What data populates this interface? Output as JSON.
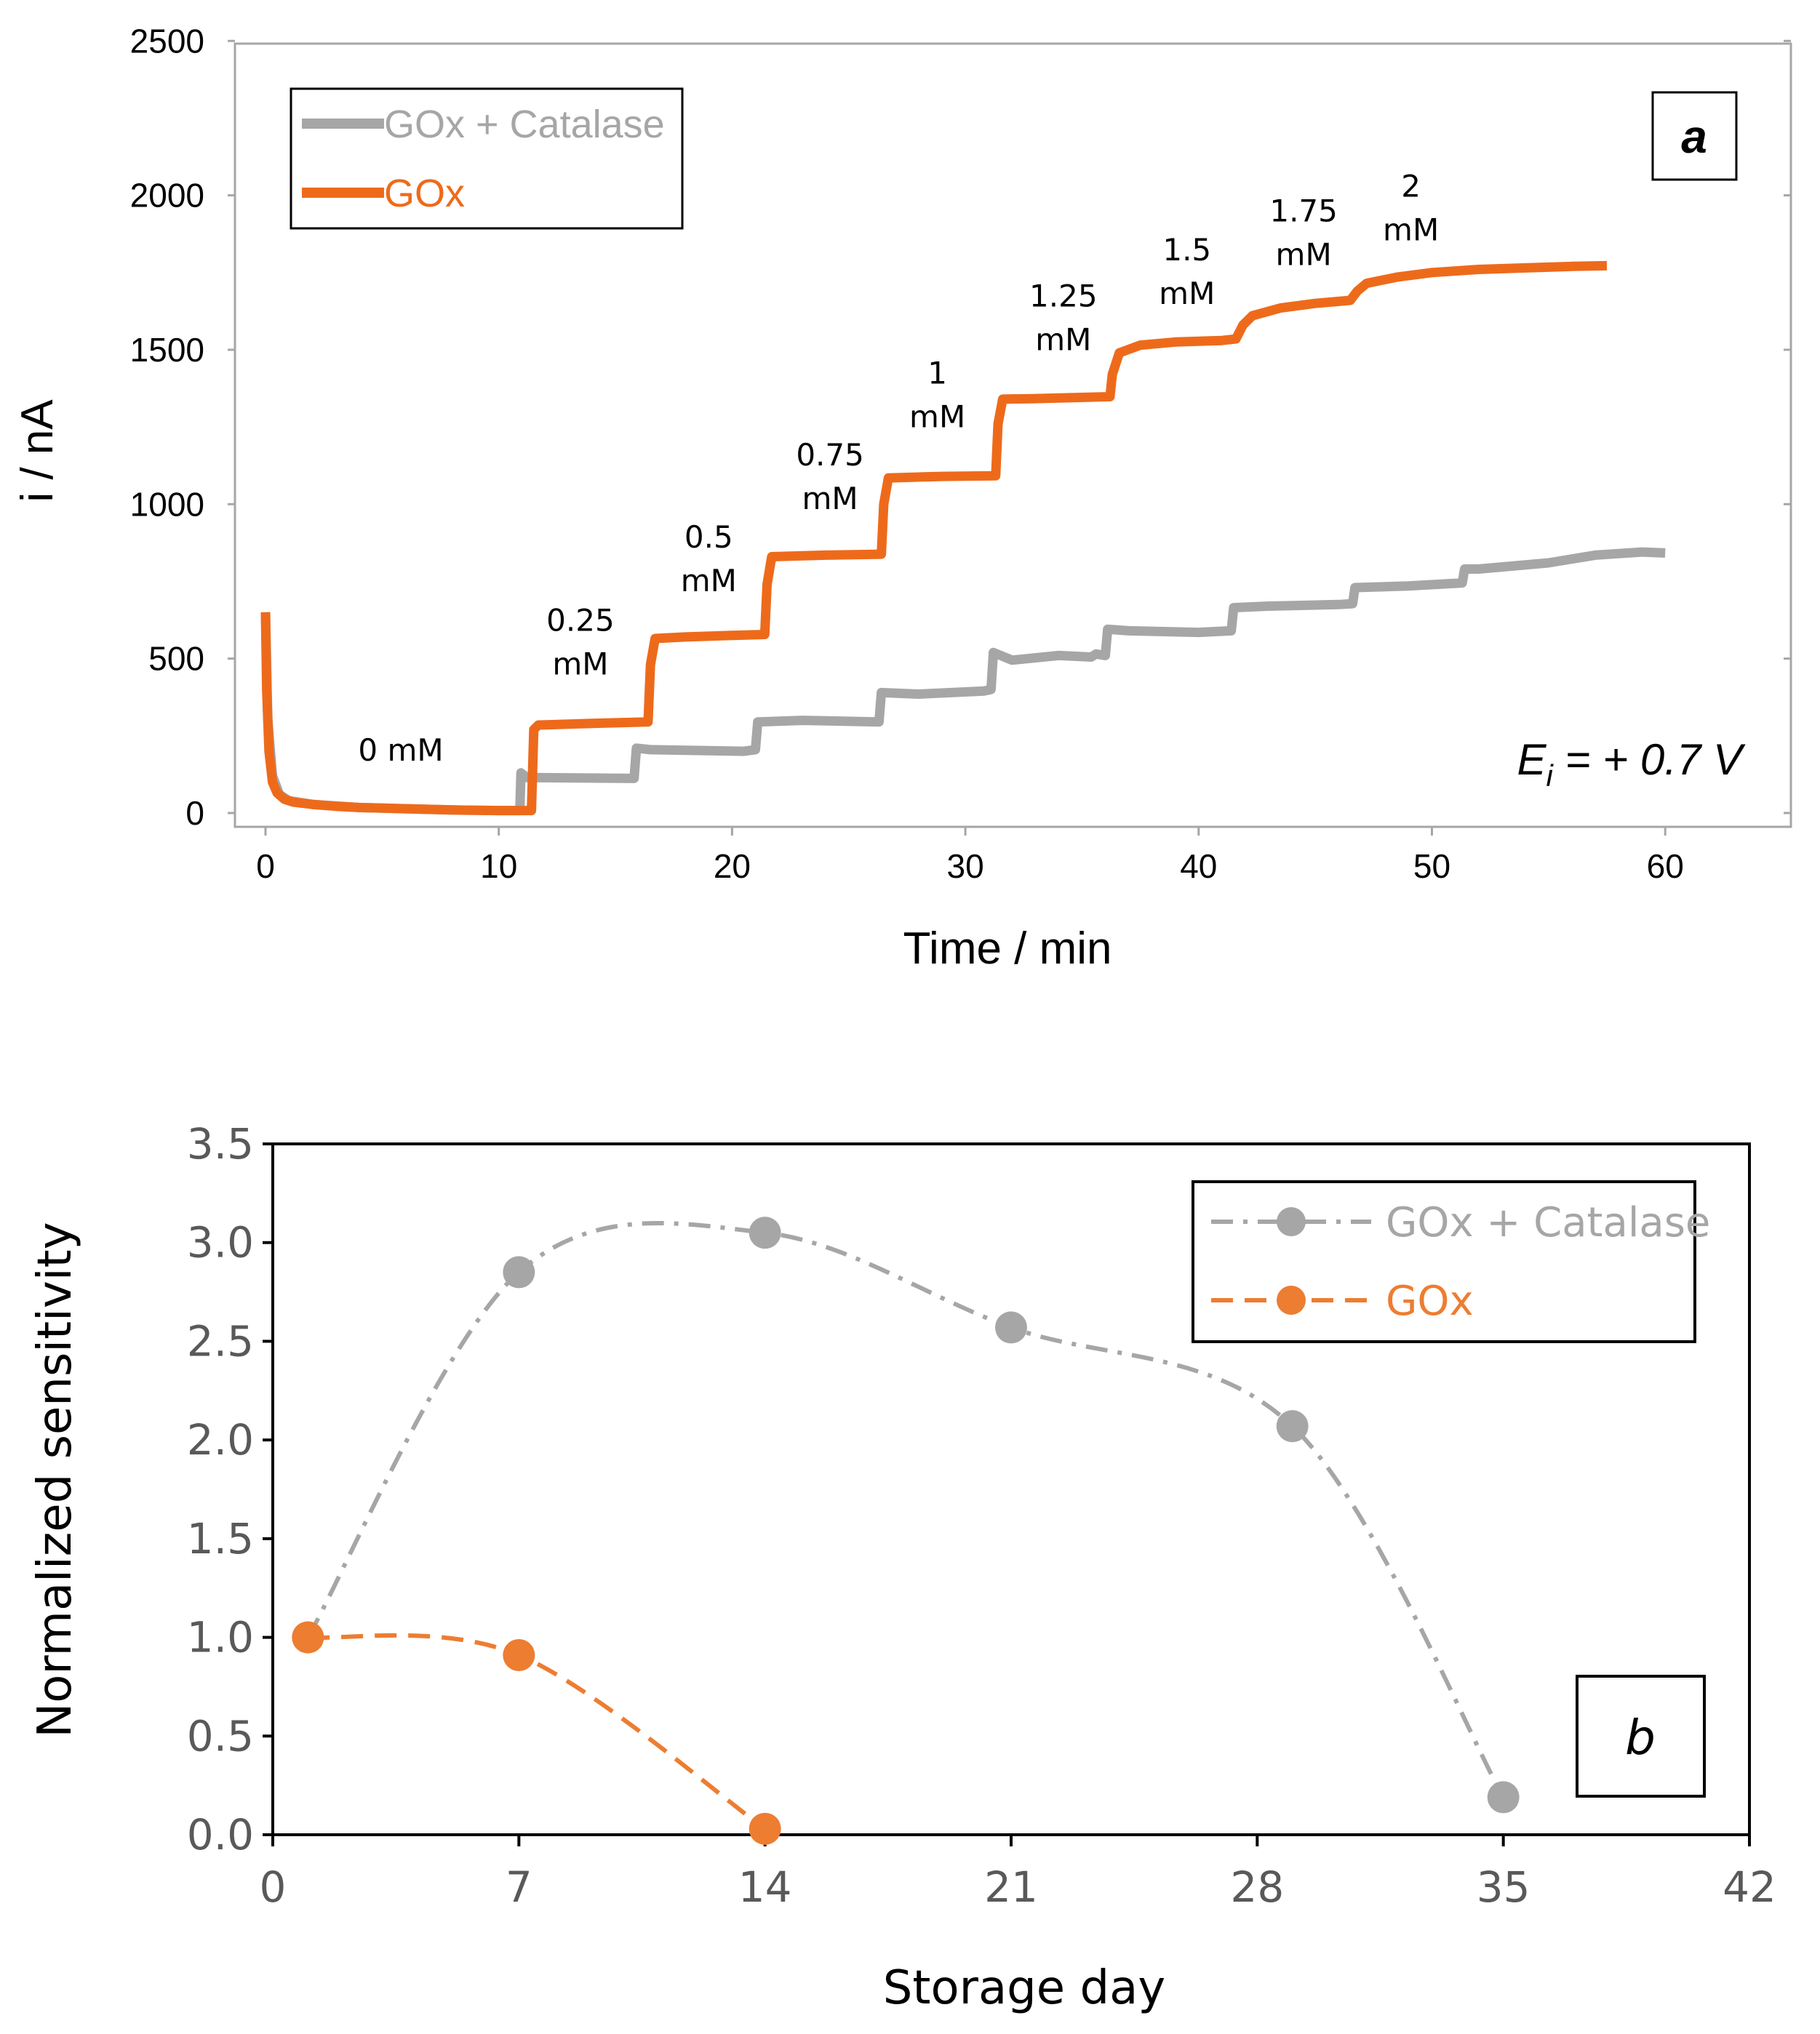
{
  "chart_data": [
    {
      "type": "line",
      "panel_label": "a",
      "xlabel": "Time / min",
      "ylabel": "i / nA",
      "xlim": [
        -1,
        65
      ],
      "ylim": [
        -50,
        2500
      ],
      "xticks": [
        0,
        10,
        20,
        30,
        40,
        50,
        60
      ],
      "yticks": [
        0,
        500,
        1000,
        1500,
        2000,
        2500
      ],
      "potential_label": {
        "main": "E",
        "sub": "i",
        "rest": " = + 0.7 V"
      },
      "legend_position": "top-left",
      "series": [
        {
          "name": "GOx + Catalase",
          "color": "#a6a6a6",
          "points": [
            [
              0,
              650
            ],
            [
              0.1,
              300
            ],
            [
              0.3,
              120
            ],
            [
              0.6,
              60
            ],
            [
              1,
              40
            ],
            [
              2,
              28
            ],
            [
              4,
              18
            ],
            [
              6,
              14
            ],
            [
              8,
              10
            ],
            [
              10,
              8
            ],
            [
              10.9,
              8
            ],
            [
              10.95,
              130
            ],
            [
              11.2,
              115
            ],
            [
              15.8,
              112
            ],
            [
              15.9,
              210
            ],
            [
              16.5,
              205
            ],
            [
              20.5,
              200
            ],
            [
              21,
              205
            ],
            [
              21.1,
              295
            ],
            [
              23,
              300
            ],
            [
              26.3,
              295
            ],
            [
              26.4,
              390
            ],
            [
              28,
              385
            ],
            [
              30.8,
              395
            ],
            [
              31.1,
              400
            ],
            [
              31.2,
              520
            ],
            [
              32,
              495
            ],
            [
              34,
              510
            ],
            [
              35.4,
              505
            ],
            [
              35.6,
              515
            ],
            [
              36,
              510
            ],
            [
              36.1,
              595
            ],
            [
              37,
              590
            ],
            [
              40,
              585
            ],
            [
              41.4,
              590
            ],
            [
              41.5,
              665
            ],
            [
              43,
              670
            ],
            [
              46,
              675
            ],
            [
              46.6,
              678
            ],
            [
              46.7,
              730
            ],
            [
              49,
              735
            ],
            [
              51.3,
              745
            ],
            [
              51.4,
              790
            ],
            [
              52,
              790
            ],
            [
              55,
              810
            ],
            [
              57,
              835
            ],
            [
              59,
              845
            ],
            [
              60,
              842
            ]
          ]
        },
        {
          "name": "GOx",
          "color": "#ee6a1b",
          "points": [
            [
              0,
              650
            ],
            [
              0.05,
              400
            ],
            [
              0.15,
              200
            ],
            [
              0.3,
              100
            ],
            [
              0.5,
              65
            ],
            [
              0.8,
              45
            ],
            [
              1.2,
              35
            ],
            [
              2,
              28
            ],
            [
              3,
              22
            ],
            [
              4,
              18
            ],
            [
              6,
              14
            ],
            [
              8,
              10
            ],
            [
              10,
              8
            ],
            [
              11.4,
              8
            ],
            [
              11.5,
              270
            ],
            [
              11.7,
              285
            ],
            [
              14,
              290
            ],
            [
              16.4,
              295
            ],
            [
              16.5,
              480
            ],
            [
              16.7,
              565
            ],
            [
              18,
              570
            ],
            [
              20,
              575
            ],
            [
              21.4,
              578
            ],
            [
              21.5,
              740
            ],
            [
              21.7,
              830
            ],
            [
              24,
              835
            ],
            [
              26.4,
              838
            ],
            [
              26.5,
              1000
            ],
            [
              26.7,
              1085
            ],
            [
              29,
              1090
            ],
            [
              31.3,
              1092
            ],
            [
              31.4,
              1260
            ],
            [
              31.6,
              1340
            ],
            [
              33,
              1342
            ],
            [
              36.2,
              1348
            ],
            [
              36.3,
              1420
            ],
            [
              36.6,
              1490
            ],
            [
              37.5,
              1515
            ],
            [
              39,
              1525
            ],
            [
              41,
              1530
            ],
            [
              41.6,
              1535
            ],
            [
              41.9,
              1580
            ],
            [
              42.3,
              1610
            ],
            [
              43.5,
              1635
            ],
            [
              45,
              1650
            ],
            [
              46.5,
              1660
            ],
            [
              46.8,
              1690
            ],
            [
              47.2,
              1715
            ],
            [
              48.5,
              1735
            ],
            [
              50,
              1750
            ],
            [
              52,
              1760
            ],
            [
              54,
              1765
            ],
            [
              56,
              1770
            ],
            [
              57.5,
              1772
            ]
          ]
        }
      ],
      "annotations": [
        {
          "lines": [
            "0 mM"
          ],
          "x": 5.8,
          "y": 170
        },
        {
          "lines": [
            "0.25",
            "mM"
          ],
          "x": 13.5,
          "y": 590
        },
        {
          "lines": [
            "0.5",
            "mM"
          ],
          "x": 19,
          "y": 860
        },
        {
          "lines": [
            "0.75",
            "mM"
          ],
          "x": 24.2,
          "y": 1125
        },
        {
          "lines": [
            "1",
            "mM"
          ],
          "x": 28.8,
          "y": 1390
        },
        {
          "lines": [
            "1.25",
            "mM"
          ],
          "x": 34.2,
          "y": 1640
        },
        {
          "lines": [
            "1.5",
            "mM"
          ],
          "x": 39.5,
          "y": 1790
        },
        {
          "lines": [
            "1.75",
            "mM"
          ],
          "x": 44.5,
          "y": 1915
        },
        {
          "lines": [
            "2",
            "mM"
          ],
          "x": 49.1,
          "y": 1995
        }
      ]
    },
    {
      "type": "scatter",
      "panel_label": "b",
      "xlabel": "Storage day",
      "ylabel": "Normalized sensitivity",
      "xlim": [
        0,
        42
      ],
      "ylim": [
        0,
        3.5
      ],
      "xticks": [
        0,
        7,
        14,
        21,
        28,
        35,
        42
      ],
      "yticks": [
        "0.0",
        "0.5",
        "1.0",
        "1.5",
        "2.0",
        "2.5",
        "3.0",
        "3.5"
      ],
      "legend_position": "top-right",
      "series": [
        {
          "name": "GOx + Catalase",
          "color": "#a6a6a6",
          "line_style": "dash-dot",
          "points": [
            [
              1,
              1.0
            ],
            [
              7,
              2.85
            ],
            [
              14,
              3.05
            ],
            [
              21,
              2.57
            ],
            [
              29,
              2.07
            ],
            [
              35,
              0.19
            ]
          ]
        },
        {
          "name": "GOx",
          "color": "#ed7d31",
          "line_style": "dashed",
          "points": [
            [
              1,
              1.0
            ],
            [
              7,
              0.91
            ],
            [
              14,
              0.03
            ]
          ]
        }
      ]
    }
  ]
}
